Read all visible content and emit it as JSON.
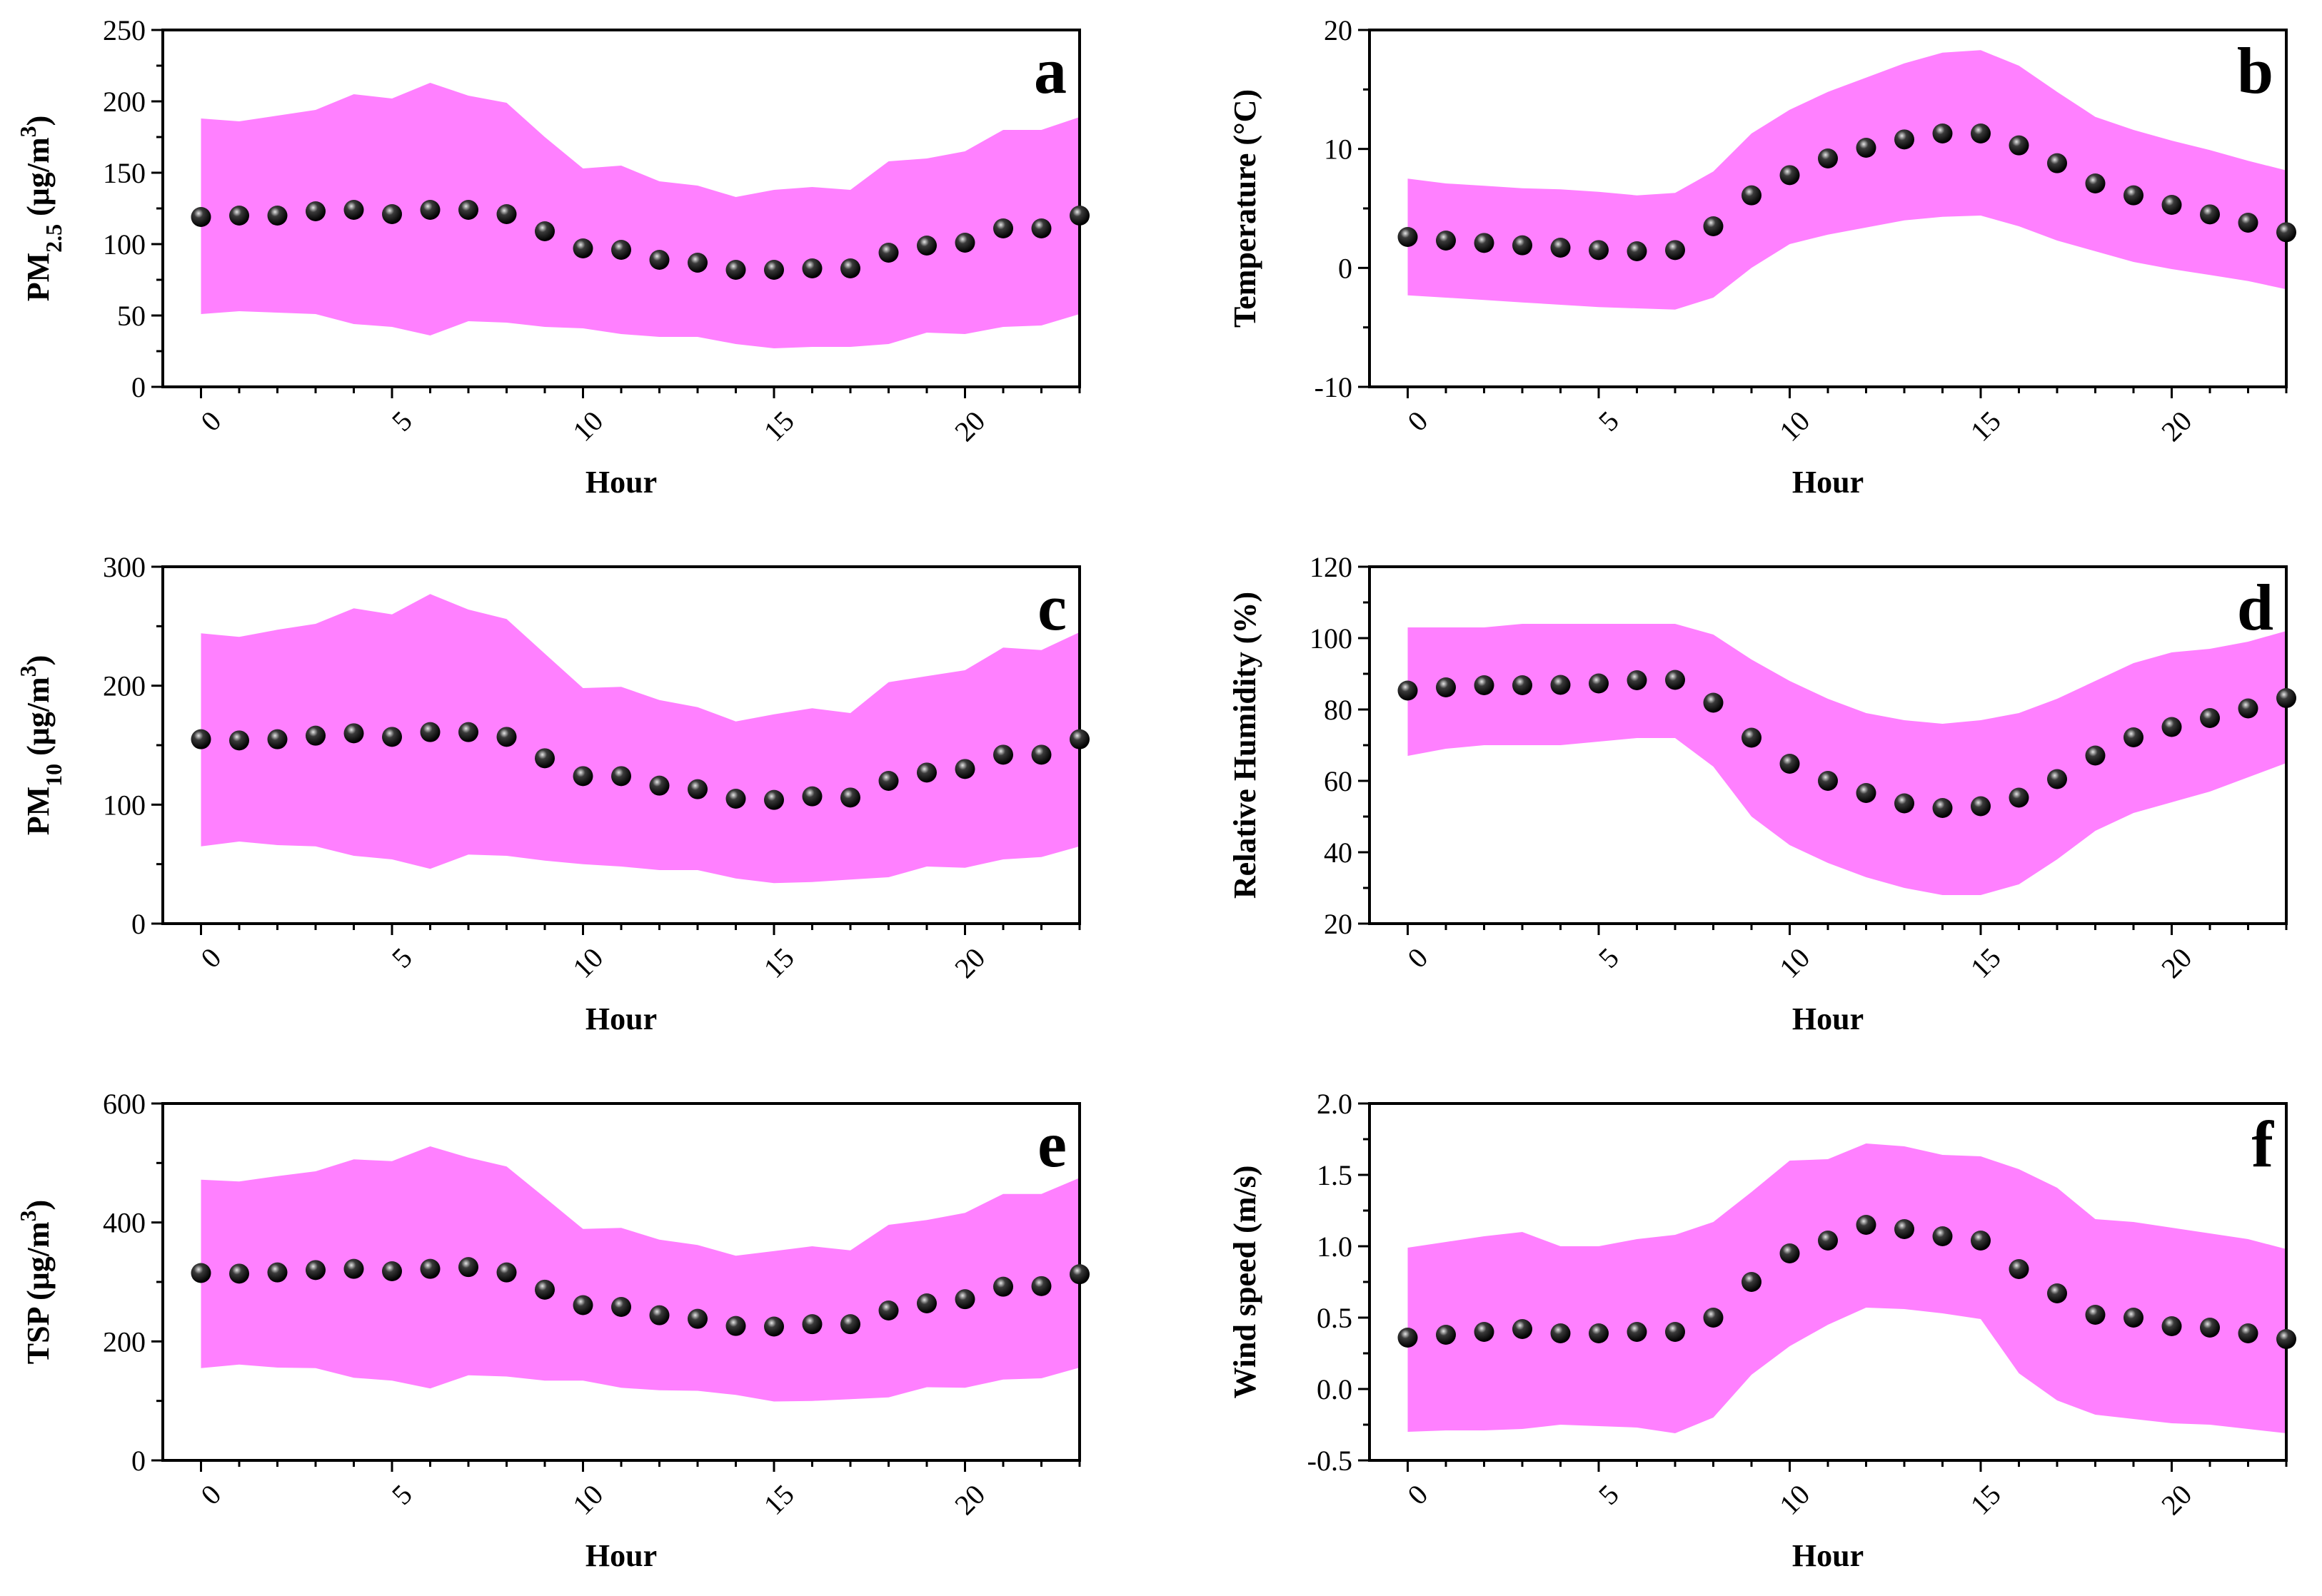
{
  "chart_data": [
    {
      "panel": "a",
      "type": "area",
      "title": "",
      "xlabel": "Hour",
      "ylabel": "PM2.5 (μg/m3)",
      "ylabel_parts": {
        "pre": "PM",
        "sub": "2.5",
        "mid": " (μg/m",
        "sup": "3",
        "post": ")"
      },
      "xlim": [
        -1,
        23
      ],
      "ylim": [
        0,
        250
      ],
      "xticks": [
        0,
        5,
        10,
        15,
        20
      ],
      "yticks": [
        0,
        50,
        100,
        150,
        200,
        250
      ],
      "hours": [
        0,
        1,
        2,
        3,
        4,
        5,
        6,
        7,
        8,
        9,
        10,
        11,
        12,
        13,
        14,
        15,
        16,
        17,
        18,
        19,
        20,
        21,
        22,
        23
      ],
      "mean": [
        119,
        120,
        120,
        123,
        124,
        121,
        124,
        124,
        121,
        109,
        97,
        96,
        89,
        87,
        82,
        82,
        83,
        83,
        94,
        99,
        101,
        111,
        111,
        120
      ],
      "upper": [
        188,
        186,
        190,
        194,
        205,
        202,
        213,
        204,
        199,
        175,
        153,
        155,
        144,
        141,
        133,
        138,
        140,
        138,
        158,
        160,
        165,
        180,
        180,
        189
      ],
      "lower": [
        51,
        53,
        52,
        51,
        44,
        42,
        36,
        46,
        45,
        42,
        41,
        37,
        35,
        35,
        30,
        27,
        28,
        28,
        30,
        38,
        37,
        42,
        43,
        51
      ]
    },
    {
      "panel": "b",
      "type": "area",
      "title": "",
      "xlabel": "Hour",
      "ylabel": "Temperature (°C)",
      "ylabel_parts": {
        "pre": "Temperature (°C)",
        "sub": "",
        "mid": "",
        "sup": "",
        "post": ""
      },
      "xlim": [
        -1,
        23
      ],
      "ylim": [
        -10,
        20
      ],
      "xticks": [
        0,
        5,
        10,
        15,
        20
      ],
      "yticks": [
        -10,
        0,
        10,
        20
      ],
      "hours": [
        0,
        1,
        2,
        3,
        4,
        5,
        6,
        7,
        8,
        9,
        10,
        11,
        12,
        13,
        14,
        15,
        16,
        17,
        18,
        19,
        20,
        21,
        22,
        23
      ],
      "mean": [
        2.6,
        2.3,
        2.1,
        1.9,
        1.7,
        1.5,
        1.4,
        1.5,
        3.5,
        6.1,
        7.8,
        9.2,
        10.1,
        10.8,
        11.3,
        11.3,
        10.3,
        8.8,
        7.1,
        6.1,
        5.3,
        4.5,
        3.8,
        3.0
      ],
      "upper": [
        7.5,
        7.1,
        6.9,
        6.7,
        6.6,
        6.4,
        6.1,
        6.3,
        8.1,
        11.3,
        13.3,
        14.8,
        16.0,
        17.2,
        18.1,
        18.3,
        17.0,
        14.8,
        12.7,
        11.6,
        10.7,
        9.9,
        9.0,
        8.2
      ],
      "lower": [
        -2.3,
        -2.5,
        -2.7,
        -2.9,
        -3.1,
        -3.3,
        -3.4,
        -3.5,
        -2.5,
        0.0,
        2.0,
        2.8,
        3.4,
        4.0,
        4.3,
        4.4,
        3.5,
        2.3,
        1.4,
        0.5,
        -0.1,
        -0.6,
        -1.1,
        -1.8
      ]
    },
    {
      "panel": "c",
      "type": "area",
      "title": "",
      "xlabel": "Hour",
      "ylabel": "PM10 (μg/m3)",
      "ylabel_parts": {
        "pre": "PM",
        "sub": "10",
        "mid": " (μg/m",
        "sup": "3",
        "post": ")"
      },
      "xlim": [
        -1,
        23
      ],
      "ylim": [
        0,
        300
      ],
      "xticks": [
        0,
        5,
        10,
        15,
        20
      ],
      "yticks": [
        0,
        100,
        200,
        300
      ],
      "hours": [
        0,
        1,
        2,
        3,
        4,
        5,
        6,
        7,
        8,
        9,
        10,
        11,
        12,
        13,
        14,
        15,
        16,
        17,
        18,
        19,
        20,
        21,
        22,
        23
      ],
      "mean": [
        155,
        154,
        155,
        158,
        160,
        157,
        161,
        161,
        157,
        139,
        124,
        124,
        116,
        113,
        105,
        104,
        107,
        106,
        120,
        127,
        130,
        142,
        142,
        155
      ],
      "upper": [
        244,
        241,
        247,
        252,
        265,
        260,
        277,
        264,
        256,
        227,
        198,
        199,
        188,
        182,
        170,
        176,
        181,
        177,
        203,
        208,
        213,
        232,
        230,
        245
      ],
      "lower": [
        65,
        69,
        66,
        65,
        57,
        54,
        46,
        58,
        57,
        53,
        50,
        48,
        45,
        45,
        38,
        34,
        35,
        37,
        39,
        48,
        47,
        54,
        56,
        65
      ]
    },
    {
      "panel": "d",
      "type": "area",
      "title": "",
      "xlabel": "Hour",
      "ylabel": "Relative Humidity (%)",
      "ylabel_parts": {
        "pre": "Relative Humidity (%)",
        "sub": "",
        "mid": "",
        "sup": "",
        "post": ""
      },
      "xlim": [
        -1,
        23
      ],
      "ylim": [
        20,
        120
      ],
      "xticks": [
        0,
        5,
        10,
        15,
        20
      ],
      "yticks": [
        20,
        40,
        60,
        80,
        100,
        120
      ],
      "hours": [
        0,
        1,
        2,
        3,
        4,
        5,
        6,
        7,
        8,
        9,
        10,
        11,
        12,
        13,
        14,
        15,
        16,
        17,
        18,
        19,
        20,
        21,
        22,
        23
      ],
      "mean": [
        85.3,
        86.2,
        86.8,
        86.8,
        86.9,
        87.3,
        88.2,
        88.3,
        81.9,
        72.1,
        64.8,
        60.0,
        56.6,
        53.7,
        52.4,
        52.9,
        55.3,
        60.5,
        67.1,
        72.2,
        75.1,
        77.6,
        80.3,
        83.2
      ],
      "upper": [
        103,
        103,
        103,
        104,
        104,
        104,
        104,
        104,
        101,
        94,
        88,
        83,
        79,
        77,
        76,
        77,
        79,
        83,
        88,
        93,
        96,
        97,
        99,
        102
      ],
      "lower": [
        67,
        69,
        70,
        70,
        70,
        71,
        72,
        72,
        64,
        50,
        42,
        37,
        33,
        30,
        28,
        28,
        31,
        38,
        46,
        51,
        54,
        57,
        61,
        65
      ]
    },
    {
      "panel": "e",
      "type": "area",
      "title": "",
      "xlabel": "Hour",
      "ylabel": "TSP (μg/m3)",
      "ylabel_parts": {
        "pre": "TSP (μg/m",
        "sub": "",
        "mid": "",
        "sup": "3",
        "post": ")"
      },
      "xlim": [
        -1,
        23
      ],
      "ylim": [
        0,
        600
      ],
      "xticks": [
        0,
        5,
        10,
        15,
        20
      ],
      "yticks": [
        0,
        200,
        400,
        600
      ],
      "hours": [
        0,
        1,
        2,
        3,
        4,
        5,
        6,
        7,
        8,
        9,
        10,
        11,
        12,
        13,
        14,
        15,
        16,
        17,
        18,
        19,
        20,
        21,
        22,
        23
      ],
      "mean": [
        315,
        314,
        316,
        320,
        322,
        318,
        322,
        325,
        316,
        287,
        261,
        258,
        244,
        238,
        226,
        225,
        229,
        229,
        252,
        264,
        271,
        292,
        293,
        313
      ],
      "upper": [
        472,
        469,
        478,
        486,
        506,
        503,
        528,
        509,
        494,
        442,
        389,
        391,
        371,
        362,
        344,
        352,
        360,
        353,
        396,
        404,
        416,
        448,
        448,
        475
      ],
      "lower": [
        155,
        161,
        156,
        155,
        139,
        134,
        121,
        143,
        141,
        134,
        134,
        122,
        118,
        117,
        110,
        99,
        100,
        103,
        106,
        123,
        122,
        136,
        138,
        156
      ]
    },
    {
      "panel": "f",
      "type": "area",
      "title": "",
      "xlabel": "Hour",
      "ylabel": "Wind speed (m/s)",
      "ylabel_parts": {
        "pre": "Wind speed (m/s)",
        "sub": "",
        "mid": "",
        "sup": "",
        "post": ""
      },
      "xlim": [
        -1,
        23
      ],
      "ylim": [
        -0.5,
        2.0
      ],
      "xticks": [
        0,
        5,
        10,
        15,
        20
      ],
      "yticks": [
        -0.5,
        0.0,
        0.5,
        1.0,
        1.5,
        2.0
      ],
      "ytick_labels": [
        "-0.5",
        "0.0",
        "0.5",
        "1.0",
        "1.5",
        "2.0"
      ],
      "hours": [
        0,
        1,
        2,
        3,
        4,
        5,
        6,
        7,
        8,
        9,
        10,
        11,
        12,
        13,
        14,
        15,
        16,
        17,
        18,
        19,
        20,
        21,
        22,
        23
      ],
      "mean": [
        0.36,
        0.38,
        0.4,
        0.42,
        0.39,
        0.39,
        0.4,
        0.4,
        0.5,
        0.75,
        0.95,
        1.04,
        1.15,
        1.12,
        1.07,
        1.04,
        0.84,
        0.67,
        0.52,
        0.5,
        0.44,
        0.43,
        0.39,
        0.35
      ],
      "upper": [
        0.99,
        1.03,
        1.07,
        1.1,
        1.0,
        1.0,
        1.05,
        1.08,
        1.17,
        1.38,
        1.6,
        1.61,
        1.72,
        1.7,
        1.64,
        1.63,
        1.54,
        1.41,
        1.19,
        1.17,
        1.13,
        1.09,
        1.05,
        0.98
      ],
      "lower": [
        -0.3,
        -0.29,
        -0.29,
        -0.28,
        -0.25,
        -0.26,
        -0.27,
        -0.31,
        -0.2,
        0.1,
        0.3,
        0.45,
        0.57,
        0.56,
        0.53,
        0.49,
        0.11,
        -0.08,
        -0.18,
        -0.21,
        -0.24,
        -0.25,
        -0.28,
        -0.31
      ]
    }
  ]
}
